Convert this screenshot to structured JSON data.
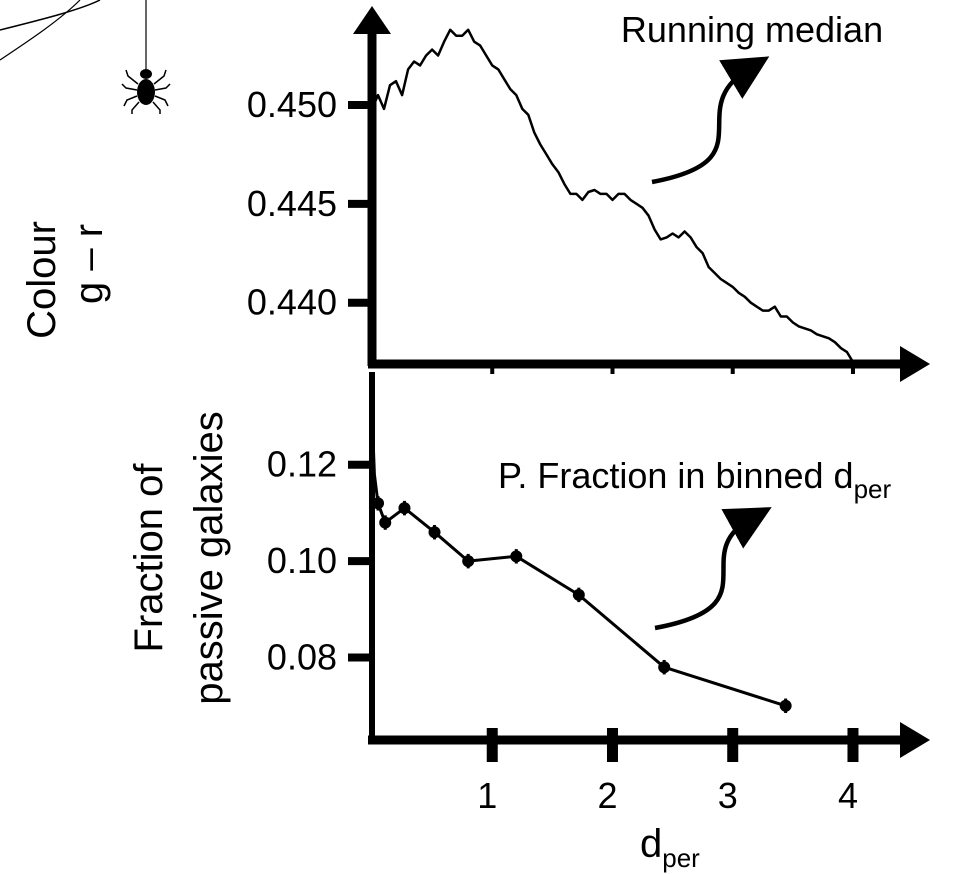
{
  "colors": {
    "ink": "#000000",
    "background": "#ffffff"
  },
  "decoration": {
    "icon": "spider-icon"
  },
  "chart_data": [
    {
      "type": "line",
      "panel": "top",
      "ylabel_lines": [
        "Colour",
        "g – r"
      ],
      "xlim": [
        0,
        4.1
      ],
      "ylim": [
        0.4369,
        0.4546
      ],
      "yticks": [
        0.45,
        0.445,
        0.44
      ],
      "ytick_labels": [
        "0.450",
        "0.445",
        "0.440"
      ],
      "annotation": "Running median",
      "series": [
        {
          "x": [
            0.0,
            0.05,
            0.1,
            0.15,
            0.2,
            0.25,
            0.3,
            0.35,
            0.4,
            0.45,
            0.5,
            0.55,
            0.6,
            0.65,
            0.7,
            0.75,
            0.8,
            0.85,
            0.9,
            0.95,
            1.0,
            1.05,
            1.1,
            1.15,
            1.2,
            1.25,
            1.3,
            1.35,
            1.4,
            1.45,
            1.5,
            1.55,
            1.6,
            1.65,
            1.7,
            1.75,
            1.8,
            1.85,
            1.9,
            1.95,
            2.0,
            2.05,
            2.1,
            2.15,
            2.2,
            2.25,
            2.3,
            2.35,
            2.4,
            2.45,
            2.5,
            2.55,
            2.6,
            2.65,
            2.7,
            2.75,
            2.8,
            2.85,
            2.9,
            2.95,
            3.0,
            3.05,
            3.1,
            3.15,
            3.2,
            3.25,
            3.3,
            3.35,
            3.4,
            3.45,
            3.5,
            3.55,
            3.6,
            3.65,
            3.7,
            3.75,
            3.8,
            3.85,
            3.9,
            3.95,
            4.0
          ],
          "y": [
            0.4498,
            0.4505,
            0.4498,
            0.451,
            0.4512,
            0.4505,
            0.4518,
            0.4522,
            0.452,
            0.4525,
            0.4528,
            0.4525,
            0.4532,
            0.4538,
            0.4535,
            0.4535,
            0.4538,
            0.4532,
            0.453,
            0.4525,
            0.452,
            0.4518,
            0.4513,
            0.4508,
            0.4505,
            0.4498,
            0.4495,
            0.4486,
            0.448,
            0.4475,
            0.447,
            0.4466,
            0.446,
            0.4455,
            0.4455,
            0.4452,
            0.4456,
            0.4457,
            0.4455,
            0.4455,
            0.4452,
            0.4455,
            0.4455,
            0.4452,
            0.445,
            0.4448,
            0.4444,
            0.4437,
            0.4432,
            0.4433,
            0.4435,
            0.4433,
            0.4436,
            0.4433,
            0.4428,
            0.4425,
            0.4418,
            0.4415,
            0.4412,
            0.441,
            0.4408,
            0.4405,
            0.4403,
            0.44,
            0.4398,
            0.4396,
            0.4396,
            0.4398,
            0.4393,
            0.4393,
            0.439,
            0.4388,
            0.4387,
            0.4386,
            0.4384,
            0.4383,
            0.4382,
            0.438,
            0.4377,
            0.4375,
            0.437
          ]
        }
      ]
    },
    {
      "type": "line",
      "panel": "bottom",
      "markers": true,
      "error_bars": true,
      "xlabel_main": "d",
      "xlabel_sub": "per",
      "ylabel_lines": [
        "Fraction of",
        "passive galaxies"
      ],
      "xlim": [
        0,
        4.1
      ],
      "ylim": [
        0.0629,
        0.1355
      ],
      "xticks": [
        1,
        2,
        3,
        4
      ],
      "xtick_labels": [
        "1",
        "2",
        "3",
        "4"
      ],
      "yticks": [
        0.12,
        0.1,
        0.08
      ],
      "ytick_labels": [
        "0.12",
        "0.10",
        "0.08"
      ],
      "annotation_main": "P. Fraction in binned d",
      "annotation_sub": "per",
      "series": [
        {
          "x": [
            0.0,
            0.02,
            0.05,
            0.11,
            0.27,
            0.52,
            0.8,
            1.2,
            1.72,
            2.43,
            3.44
          ],
          "y": [
            0.131,
            0.118,
            0.112,
            0.108,
            0.111,
            0.106,
            0.1,
            0.101,
            0.093,
            0.078,
            0.07
          ],
          "err": [
            0.0,
            0.0,
            0.0015,
            0.0015,
            0.0015,
            0.0015,
            0.0015,
            0.0015,
            0.0015,
            0.0015,
            0.0015
          ]
        }
      ]
    }
  ]
}
